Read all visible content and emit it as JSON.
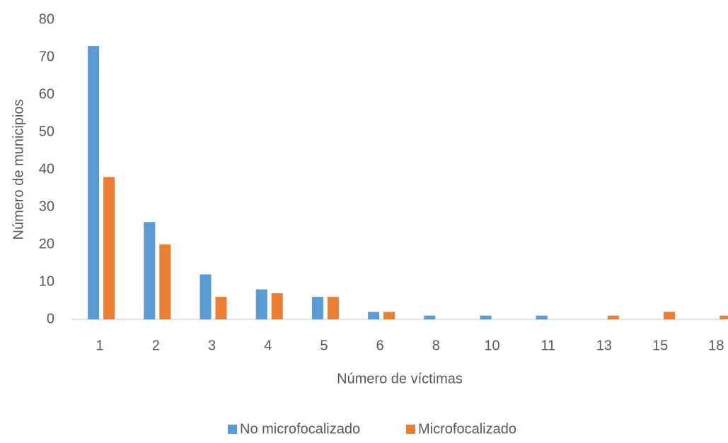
{
  "chart_data": {
    "type": "bar",
    "categories": [
      "1",
      "2",
      "3",
      "4",
      "5",
      "6",
      "8",
      "10",
      "11",
      "13",
      "15",
      "18"
    ],
    "series": [
      {
        "name": "No microfocalizado",
        "color": "#5b9bd5",
        "values": [
          73,
          26,
          12,
          8,
          6,
          2,
          1,
          1,
          1,
          0,
          0,
          0
        ]
      },
      {
        "name": "Microfocalizado",
        "color": "#ed7d31",
        "values": [
          38,
          20,
          6,
          7,
          6,
          2,
          0,
          0,
          0,
          1,
          2,
          1
        ]
      }
    ],
    "x_label": "Número de víctimas",
    "y_label": "Número de municipios",
    "ylim": [
      0,
      80
    ],
    "yticks": [
      0,
      10,
      20,
      30,
      40,
      50,
      60,
      70,
      80
    ],
    "grid": false,
    "legend": "bottom"
  }
}
